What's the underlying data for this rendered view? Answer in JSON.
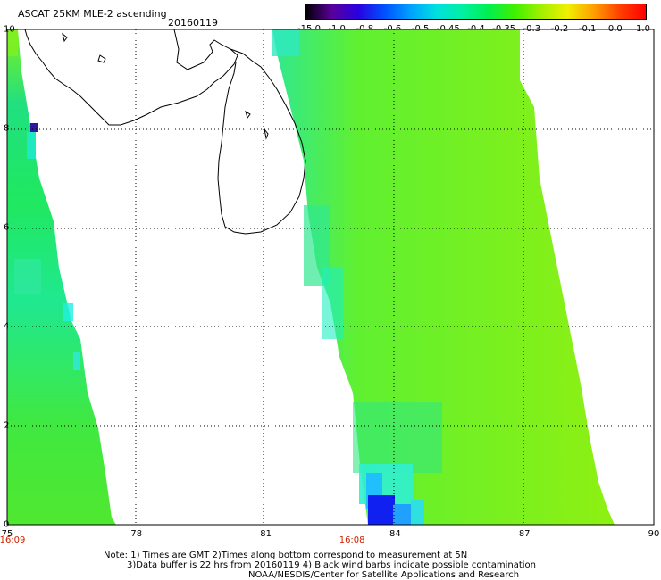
{
  "header": {
    "title": "ASCAT 25KM MLE-2 ascending",
    "date": "20160119"
  },
  "colorbar": {
    "labels": [
      "-15.0",
      "-1.0",
      "-0.8",
      "-0.6",
      "-0.5",
      "-0.45",
      "-0.4",
      "-0.35",
      "-0.3",
      "-0.2",
      "-0.1",
      "0.0",
      "1.0"
    ],
    "colors": [
      "#000000",
      "#5a009a",
      "#2a00e0",
      "#0050ff",
      "#00a0ff",
      "#00e0e0",
      "#00f0a0",
      "#00f050",
      "#40f000",
      "#a0f000",
      "#f0f000",
      "#ffa000",
      "#ff4000",
      "#ff0000"
    ]
  },
  "map": {
    "x_ticks": [
      "75",
      "78",
      "81",
      "84",
      "87",
      "90"
    ],
    "y_ticks": [
      "0",
      "2",
      "4",
      "6",
      "8",
      "10"
    ],
    "x_range": [
      75,
      90
    ],
    "y_range": [
      0,
      10
    ]
  },
  "times": [
    {
      "label": "16:09",
      "lon": 75
    },
    {
      "label": "16:08",
      "lon": 83
    }
  ],
  "notes": {
    "line1": "Note: 1) Times are GMT 2)Times along bottom correspond to measurement at 5N",
    "line2": "3)Data buffer is 22 hrs from 20160119 4) Black wind barbs indicate possible contamination",
    "line3": "NOAA/NESDIS/Center for Satellite Applications and Research"
  }
}
